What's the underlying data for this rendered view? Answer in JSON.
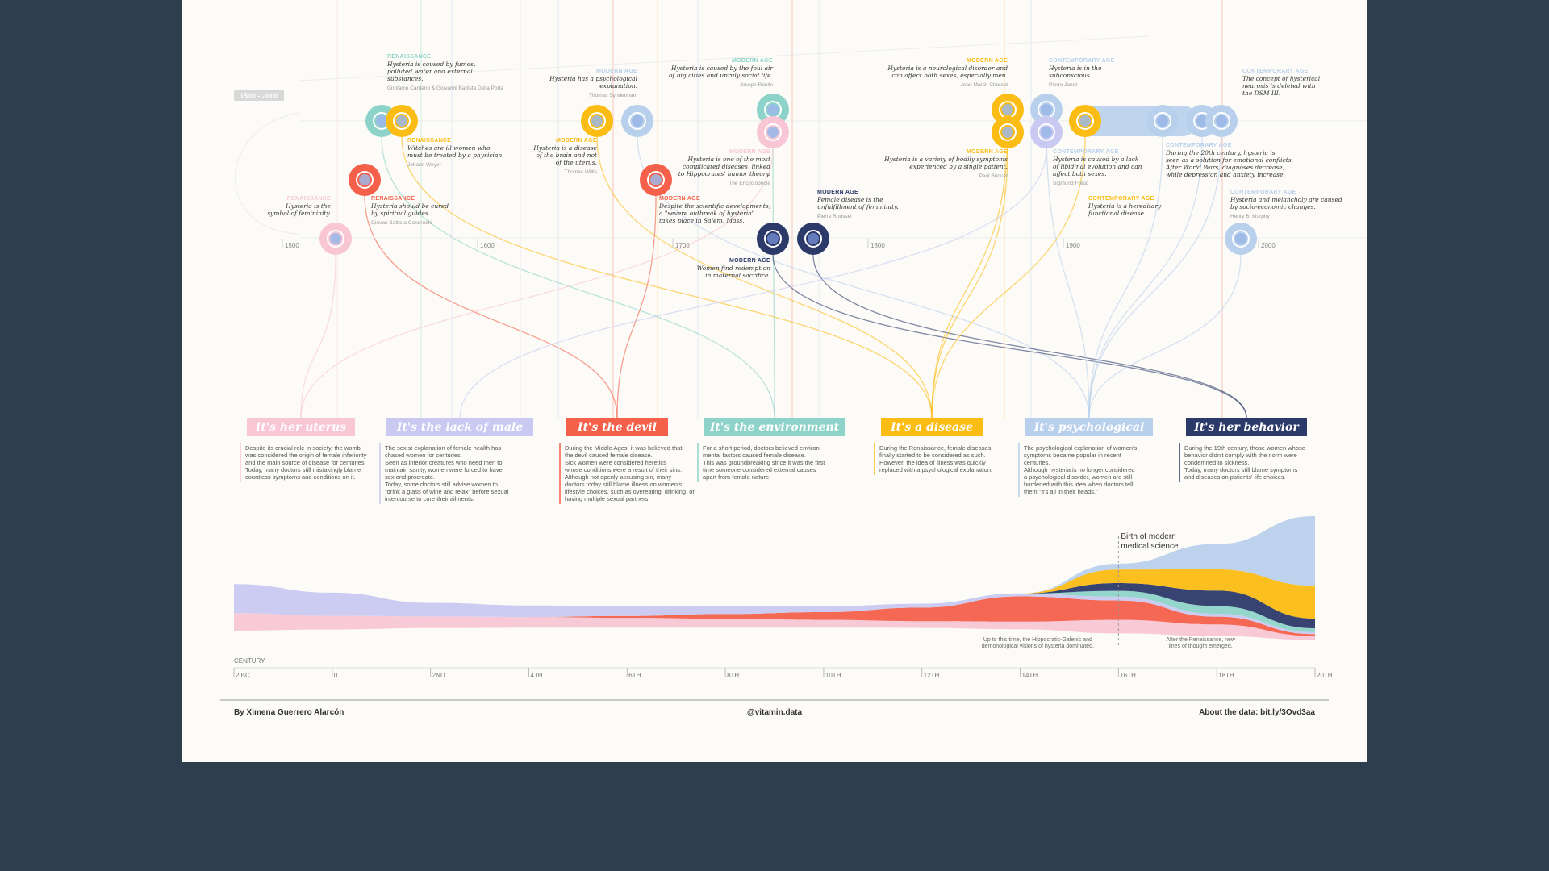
{
  "colors": {
    "uterus": "#f8c6d4",
    "male": "#c9c9f2",
    "devil": "#f4604a",
    "environment": "#8ed3c9",
    "disease": "#fbbc14",
    "psychological": "#b8d0ec",
    "behavior": "#2c3a6a",
    "background": "#2e3e4f"
  },
  "timeline": {
    "era_label": "1500 - 2000",
    "ticks": [
      "1500",
      "1600",
      "1700",
      "1800",
      "1900",
      "2000"
    ]
  },
  "categories": [
    {
      "label": "It's her uterus",
      "color": "#f8c6d4",
      "desc": [
        "Despite its crucial role in society, the womb",
        "was considered the origin of female inferiority",
        "and the main source of disease for centuries.",
        "Today, many doctors still mistakingly blame",
        "countless symptoms and conditions on it."
      ]
    },
    {
      "label": "It's the lack of male",
      "color": "#c9c9f2",
      "desc": [
        "The sexist explanation of female health has",
        "chased women for centuries.",
        "Seen as inferior creatures who need men to",
        "maintain sanity, women were forced to have",
        "sex and procreate.",
        "Today, some doctors still advise women to",
        "\"drink a glass of wine and relax\" before sexual",
        "intercourse to cure their ailments."
      ]
    },
    {
      "label": "It's the devil",
      "color": "#f4604a",
      "desc": [
        "During the Middle Ages, it was believed that",
        "the devil caused female disease.",
        "Sick women were considered heretics",
        "whose conditions were a result of their sins.",
        "Although not openly accusing sin, many",
        "doctors today still blame illness on women's",
        "lifestyle choices, such as overeating, drinking, or",
        "having multiple sexual partners."
      ]
    },
    {
      "label": "It's the environment",
      "color": "#8ed3c9",
      "desc": [
        "For a short period, doctors believed environ-",
        "mental factors caused female disease.",
        "This was groundbreaking since it was the first",
        "time someone considered external causes",
        "apart from female nature."
      ]
    },
    {
      "label": "It's a disease",
      "color": "#fbbc14",
      "desc": [
        "During the Renaissance, female diseases",
        "finally started to be considered as such.",
        "However, the idea of illness was quickly",
        "replaced with a psychological explanation."
      ]
    },
    {
      "label": "It's psychological",
      "color": "#b8d0ec",
      "desc": [
        "The psychological explanation of women's",
        "symptoms became popular in recent",
        "centuries.",
        "Although hysteria is no longer considered",
        "a psychological disorder, women are still",
        "burdened with this idea when doctors tell",
        "them \"it's all in their heads.\""
      ]
    },
    {
      "label": "It's her behavior",
      "color": "#2c3a6a",
      "desc": [
        "During the 19th century, those women whose",
        "behavior didn't comply with the norm were",
        "condemned to sickness.",
        "Today, many doctors still blame symptoms",
        "and diseases on patients' life choices."
      ]
    }
  ],
  "annotations": [
    {
      "era": "RENAISSANCE",
      "era_color": "#8ed3c9",
      "quote": [
        "Hysteria is caused by fumes,",
        "polluted water and external",
        "substances."
      ],
      "author": "Girolamo Cardano & Giovanni Battista Della Porta"
    },
    {
      "era": "RENAISSANCE",
      "era_color": "#fbbc14",
      "quote": [
        "Witches are ill women who",
        "must be treated by a physician."
      ],
      "author": "Johann Weyer"
    },
    {
      "era": "RENAISSANCE",
      "era_color": "#f4604a",
      "quote": [
        "Hysteria should be cured",
        "by spiritual guides."
      ],
      "author": "Giovan Battista Condrochi"
    },
    {
      "era": "RENAISSANCE",
      "era_color": "#f8c6d4",
      "quote": [
        "Hysteria is the",
        "symbol of femininity."
      ],
      "author": ""
    },
    {
      "era": "MODERN AGE",
      "era_color": "#b8d0ec",
      "quote": [
        "Hysteria has a psychological",
        "explanation."
      ],
      "author": "Thomas Syndenham"
    },
    {
      "era": "MODERN AGE",
      "era_color": "#fbbc14",
      "quote": [
        "Hysteria is a disease",
        "of the brain and not",
        "of the uterus."
      ],
      "author": "Thomas Willis"
    },
    {
      "era": "MODERN AGE",
      "era_color": "#8ed3c9",
      "quote": [
        "Hysteria is caused by the foul air",
        "of big cities and unruly social life."
      ],
      "author": "Joseph Raulin"
    },
    {
      "era": "MODERN AGE",
      "era_color": "#f8c6d4",
      "quote": [
        "Hysteria is one of the most",
        "complicated diseases, linked",
        "to Hippocrates' humor theory."
      ],
      "author": "The Encyclopedie"
    },
    {
      "era": "MODERN AGE",
      "era_color": "#f4604a",
      "quote": [
        "Despite the scientific developments,",
        "a \"severe outbreak of hysteria\"",
        "takes place in Salem, Mass."
      ],
      "author": ""
    },
    {
      "era": "MODERN AGE",
      "era_color": "#2c3a6a",
      "quote": [
        "Female disease is the",
        "unfulfillment of femininity."
      ],
      "author": "Pierre Roussel"
    },
    {
      "era": "MODERN AGE",
      "era_color": "#2c3a6a",
      "quote": [
        "Women find redemption",
        "in maternal sacrifice."
      ],
      "author": ""
    },
    {
      "era": "MODERN AGE",
      "era_color": "#fbbc14",
      "quote": [
        "Hysteria is a neurological disorder and",
        "can affect both sexes, especially men."
      ],
      "author": "Jean Martin Charcot"
    },
    {
      "era": "MODERN AGE",
      "era_color": "#fbbc14",
      "quote": [
        "Hysteria is a variety of bodily symptoms",
        "experienced by a single patient."
      ],
      "author": "Paul Briquet"
    },
    {
      "era": "CONTEMPORARY AGE",
      "era_color": "#b8d0ec",
      "quote": [
        "Hysteria is in the",
        "subconscious."
      ],
      "author": "Pierre Janet"
    },
    {
      "era": "CONTEMPORARY AGE",
      "era_color": "#b8d0ec",
      "quote": [
        "Hysteria is caused by a lack",
        "of libidinal evolution and can",
        "affect both sexes."
      ],
      "author": "Sigmund Freud"
    },
    {
      "era": "CONTEMPORARY AGE",
      "era_color": "#fbbc14",
      "quote": [
        "Hysteria is a hereditary",
        "functional disease."
      ],
      "author": ""
    },
    {
      "era": "CONTEMPORARY AGE",
      "era_color": "#b8d0ec",
      "quote": [
        "The concept of hysterical",
        "neurosis is deleted with",
        "the DSM III."
      ],
      "author": ""
    },
    {
      "era": "CONTEMPORARY AGE",
      "era_color": "#b8d0ec",
      "quote": [
        "During the 20th century, hysteria is",
        "seen as a solution for emotional conflicts.",
        "After World Wars, diagnoses decrease,",
        "while depression and anxiety increase."
      ],
      "author": ""
    },
    {
      "era": "CONTEMPORARY AGE",
      "era_color": "#b8d0ec",
      "quote": [
        "Hysteria and melancholy are caused",
        "by socio-economic changes."
      ],
      "author": "Henry B. Murphy"
    }
  ],
  "stream": {
    "century_label": "CENTURY",
    "ticks": [
      "2 BC",
      "0",
      "2ND",
      "4TH",
      "6TH",
      "8TH",
      "10TH",
      "12TH",
      "14TH",
      "16TH",
      "18TH",
      "20TH"
    ],
    "annotation_birth": [
      "Birth of modern",
      "medical science"
    ],
    "note_left": [
      "Up to this time, the Hippocratic-Galenic and",
      "demonological visions of hysteria dominated."
    ],
    "note_right": [
      "After the Renaissance, new",
      "lines of thought emerged."
    ]
  },
  "footer": {
    "author": "By Ximena Guerrero Alarcón",
    "handle": "@vitamin.data",
    "about": "About the data: bit.ly/3Ovd3aa"
  },
  "chart_data": {
    "type": "area",
    "x": [
      "2 BC",
      "0",
      "2ND",
      "4TH",
      "6TH",
      "8TH",
      "10TH",
      "12TH",
      "14TH",
      "16TH",
      "18TH",
      "20TH"
    ],
    "series": [
      {
        "name": "It's her uterus",
        "values": [
          18,
          14,
          12,
          11,
          10,
          9,
          8,
          7,
          8,
          14,
          12,
          4
        ]
      },
      {
        "name": "It's the lack of male",
        "values": [
          30,
          24,
          14,
          12,
          10,
          8,
          6,
          4,
          3,
          4,
          3,
          2
        ]
      },
      {
        "name": "It's the devil",
        "values": [
          0,
          0,
          0,
          0,
          2,
          5,
          8,
          14,
          26,
          20,
          8,
          2
        ]
      },
      {
        "name": "It's the environment",
        "values": [
          0,
          0,
          0,
          0,
          0,
          0,
          0,
          0,
          0,
          6,
          8,
          4
        ]
      },
      {
        "name": "It's a disease",
        "values": [
          0,
          0,
          0,
          0,
          0,
          0,
          0,
          0,
          0,
          14,
          22,
          34
        ]
      },
      {
        "name": "It's psychological",
        "values": [
          0,
          0,
          0,
          0,
          0,
          0,
          0,
          0,
          0,
          6,
          26,
          72
        ]
      },
      {
        "name": "It's her behavior",
        "values": [
          0,
          0,
          0,
          0,
          0,
          0,
          0,
          0,
          0,
          8,
          16,
          10
        ]
      }
    ]
  }
}
